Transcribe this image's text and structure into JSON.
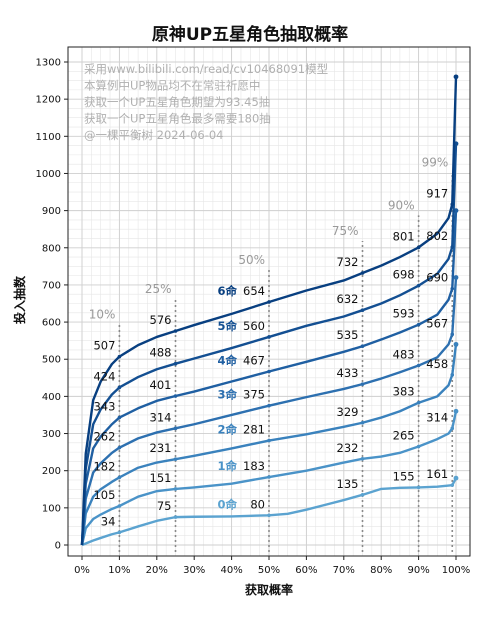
{
  "chart_data": {
    "type": "line",
    "title": "原神UP五星角色抽取概率",
    "xlabel": "获取概率",
    "ylabel": "投入抽数",
    "xlim": [
      0,
      100
    ],
    "ylim": [
      0,
      1300
    ],
    "x_ticks": [
      "0%",
      "10%",
      "20%",
      "30%",
      "40%",
      "50%",
      "60%",
      "70%",
      "80%",
      "90%",
      "100%"
    ],
    "y_ticks": [
      0,
      100,
      200,
      300,
      400,
      500,
      600,
      700,
      800,
      900,
      1000,
      1100,
      1200,
      1300
    ],
    "grid": true,
    "notes": [
      "采用www.bilibili.com/read/cv10468091模型",
      "本算例中UP物品均不在常驻祈愿中",
      "获取一个UP五星角色期望为93.45抽",
      "获取一个UP五星角色最多需要180抽",
      "@一棵平衡树 2024-06-04"
    ],
    "markers": [
      {
        "x": 10,
        "label": "10%"
      },
      {
        "x": 25,
        "label": "25%"
      },
      {
        "x": 50,
        "label": "50%"
      },
      {
        "x": 75,
        "label": "75%"
      },
      {
        "x": 90,
        "label": "90%"
      },
      {
        "x": 99,
        "label": "99%"
      }
    ],
    "series": [
      {
        "name": "0命",
        "color": "#5ba3d0",
        "max": 180,
        "x": [
          0,
          1,
          3,
          5,
          8,
          10,
          15,
          20,
          25,
          30,
          40,
          50,
          55,
          60,
          65,
          70,
          75,
          80,
          85,
          90,
          95,
          99,
          100
        ],
        "y": [
          0,
          4,
          12,
          19,
          29,
          34,
          50,
          65,
          75,
          76,
          77,
          80,
          84,
          95,
          108,
          121,
          135,
          151,
          154,
          155,
          157,
          161,
          180
        ],
        "labels": [
          {
            "x": 10,
            "y": 34
          },
          {
            "x": 25,
            "y": 75
          },
          {
            "x": 50,
            "y": 80
          },
          {
            "x": 75,
            "y": 135
          },
          {
            "x": 90,
            "y": 155
          },
          {
            "x": 99,
            "y": 161
          }
        ]
      },
      {
        "name": "1命",
        "color": "#4a93c8",
        "max": 360,
        "x": [
          0,
          1,
          3,
          5,
          8,
          10,
          15,
          20,
          25,
          30,
          40,
          50,
          60,
          70,
          75,
          80,
          85,
          90,
          95,
          98,
          99,
          100
        ],
        "y": [
          0,
          45,
          70,
          82,
          97,
          105,
          130,
          145,
          151,
          155,
          165,
          183,
          200,
          222,
          232,
          238,
          248,
          265,
          285,
          300,
          314,
          360
        ],
        "labels": [
          {
            "x": 10,
            "y": 105
          },
          {
            "x": 25,
            "y": 151
          },
          {
            "x": 50,
            "y": 183
          },
          {
            "x": 75,
            "y": 232
          },
          {
            "x": 90,
            "y": 265
          },
          {
            "x": 99,
            "y": 314
          }
        ]
      },
      {
        "name": "2命",
        "color": "#3a82bd",
        "max": 540,
        "x": [
          0,
          1,
          3,
          5,
          8,
          10,
          15,
          20,
          25,
          30,
          40,
          50,
          60,
          70,
          75,
          80,
          85,
          90,
          95,
          98,
          99,
          100
        ],
        "y": [
          0,
          85,
          130,
          150,
          170,
          182,
          208,
          222,
          231,
          240,
          260,
          281,
          298,
          318,
          329,
          343,
          360,
          383,
          400,
          430,
          458,
          540
        ],
        "labels": [
          {
            "x": 10,
            "y": 182
          },
          {
            "x": 25,
            "y": 231
          },
          {
            "x": 50,
            "y": 281
          },
          {
            "x": 75,
            "y": 329
          },
          {
            "x": 90,
            "y": 383
          },
          {
            "x": 99,
            "y": 458
          }
        ]
      },
      {
        "name": "3命",
        "color": "#2d70b0",
        "max": 720,
        "x": [
          0,
          1,
          3,
          5,
          8,
          10,
          15,
          20,
          25,
          30,
          40,
          50,
          60,
          70,
          75,
          80,
          85,
          90,
          95,
          98,
          99,
          100
        ],
        "y": [
          0,
          125,
          195,
          220,
          248,
          262,
          287,
          303,
          314,
          325,
          350,
          375,
          398,
          420,
          433,
          448,
          465,
          483,
          505,
          540,
          567,
          720
        ],
        "labels": [
          {
            "x": 10,
            "y": 262
          },
          {
            "x": 25,
            "y": 314
          },
          {
            "x": 50,
            "y": 375
          },
          {
            "x": 75,
            "y": 433
          },
          {
            "x": 90,
            "y": 483
          },
          {
            "x": 99,
            "y": 567
          }
        ]
      },
      {
        "name": "4命",
        "color": "#1f5fa2",
        "max": 900,
        "x": [
          0,
          1,
          3,
          5,
          8,
          10,
          15,
          20,
          25,
          30,
          40,
          50,
          60,
          70,
          75,
          80,
          85,
          90,
          95,
          98,
          99,
          100
        ],
        "y": [
          0,
          165,
          260,
          292,
          325,
          343,
          368,
          388,
          401,
          413,
          440,
          467,
          493,
          520,
          535,
          553,
          572,
          593,
          620,
          660,
          690,
          900
        ],
        "labels": [
          {
            "x": 10,
            "y": 343
          },
          {
            "x": 25,
            "y": 401
          },
          {
            "x": 50,
            "y": 467
          },
          {
            "x": 75,
            "y": 535
          },
          {
            "x": 90,
            "y": 593
          },
          {
            "x": 99,
            "y": 690
          }
        ]
      },
      {
        "name": "5命",
        "color": "#134f92",
        "max": 1080,
        "x": [
          0,
          1,
          3,
          5,
          8,
          10,
          15,
          20,
          25,
          30,
          40,
          50,
          60,
          70,
          75,
          80,
          85,
          90,
          95,
          98,
          99,
          100
        ],
        "y": [
          0,
          205,
          325,
          365,
          405,
          424,
          452,
          473,
          488,
          502,
          530,
          560,
          590,
          615,
          632,
          650,
          672,
          698,
          730,
          770,
          802,
          1080
        ],
        "labels": [
          {
            "x": 10,
            "y": 424
          },
          {
            "x": 25,
            "y": 488
          },
          {
            "x": 50,
            "y": 560
          },
          {
            "x": 75,
            "y": 632
          },
          {
            "x": 90,
            "y": 698
          },
          {
            "x": 99,
            "y": 802
          }
        ]
      },
      {
        "name": "6命",
        "color": "#083f80",
        "max": 1260,
        "x": [
          0,
          1,
          3,
          5,
          8,
          10,
          15,
          20,
          25,
          30,
          40,
          50,
          60,
          70,
          75,
          80,
          85,
          90,
          95,
          98,
          99,
          100
        ],
        "y": [
          0,
          245,
          390,
          440,
          487,
          507,
          538,
          560,
          576,
          592,
          622,
          654,
          685,
          712,
          732,
          752,
          775,
          801,
          838,
          880,
          917,
          1260
        ],
        "labels": [
          {
            "x": 10,
            "y": 507
          },
          {
            "x": 25,
            "y": 576
          },
          {
            "x": 50,
            "y": 654
          },
          {
            "x": 75,
            "y": 732
          },
          {
            "x": 90,
            "y": 801
          },
          {
            "x": 99,
            "y": 917
          }
        ]
      }
    ]
  }
}
